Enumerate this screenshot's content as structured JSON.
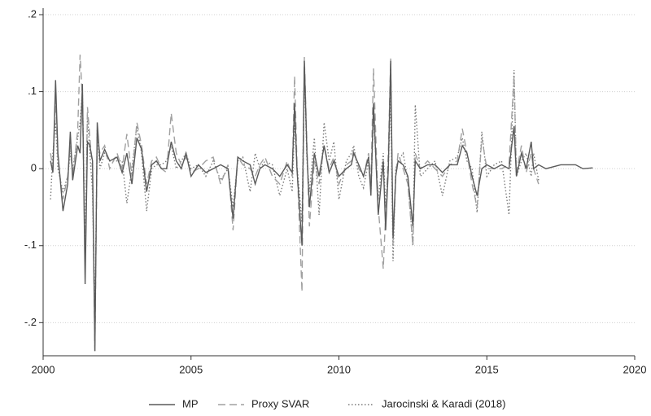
{
  "chart_data": {
    "type": "line",
    "x": [
      2000.25,
      2000.33,
      2000.42,
      2000.5,
      2000.67,
      2000.83,
      2000.92,
      2001.0,
      2001.17,
      2001.25,
      2001.33,
      2001.42,
      2001.5,
      2001.58,
      2001.67,
      2001.75,
      2001.83,
      2001.92,
      2002.08,
      2002.25,
      2002.5,
      2002.67,
      2002.83,
      2003.0,
      2003.17,
      2003.33,
      2003.5,
      2003.67,
      2003.83,
      2004.0,
      2004.17,
      2004.33,
      2004.5,
      2004.67,
      2004.83,
      2005.0,
      2005.25,
      2005.5,
      2005.75,
      2006.0,
      2006.25,
      2006.42,
      2006.58,
      2006.75,
      2007.0,
      2007.17,
      2007.33,
      2007.5,
      2007.75,
      2008.0,
      2008.25,
      2008.42,
      2008.5,
      2008.58,
      2008.75,
      2008.83,
      2008.92,
      2009.0,
      2009.17,
      2009.33,
      2009.5,
      2009.67,
      2009.83,
      2010.0,
      2010.25,
      2010.42,
      2010.5,
      2010.67,
      2010.83,
      2011.0,
      2011.08,
      2011.17,
      2011.33,
      2011.5,
      2011.58,
      2011.67,
      2011.75,
      2011.83,
      2011.92,
      2012.0,
      2012.17,
      2012.33,
      2012.5,
      2012.58,
      2012.75,
      2013.0,
      2013.25,
      2013.5,
      2013.75,
      2014.0,
      2014.17,
      2014.33,
      2014.5,
      2014.67,
      2014.83,
      2015.0,
      2015.25,
      2015.5,
      2015.75,
      2015.92,
      2016.0,
      2016.17,
      2016.33,
      2016.5,
      2016.58,
      2016.75,
      2017.0,
      2017.5,
      2018.0,
      2018.25,
      2018.58
    ],
    "series": [
      {
        "name": "MP",
        "color": "#5a5a5a",
        "dash": "solid",
        "values": [
          0.01,
          -0.005,
          0.115,
          0.02,
          -0.055,
          -0.02,
          0.048,
          -0.015,
          0.03,
          0.02,
          0.11,
          -0.15,
          0.035,
          0.03,
          0.01,
          -0.237,
          0.06,
          0.01,
          0.025,
          0.01,
          0.015,
          -0.005,
          0.02,
          -0.02,
          0.04,
          0.025,
          -0.03,
          0.005,
          0.01,
          0.0,
          0.0,
          0.035,
          0.01,
          0.0,
          0.02,
          -0.01,
          0.005,
          -0.005,
          0.0,
          0.005,
          0.0,
          -0.065,
          0.015,
          0.01,
          0.005,
          -0.02,
          0.0,
          0.005,
          0.0,
          -0.01,
          0.005,
          -0.005,
          0.085,
          0.0,
          -0.1,
          0.14,
          0.02,
          -0.05,
          0.02,
          -0.01,
          0.03,
          -0.005,
          0.01,
          -0.01,
          0.0,
          0.005,
          0.02,
          0.005,
          -0.01,
          0.015,
          -0.035,
          0.085,
          -0.06,
          0.01,
          -0.08,
          0.0,
          0.14,
          -0.09,
          -0.01,
          0.01,
          0.005,
          -0.01,
          -0.075,
          0.01,
          0.0,
          0.005,
          0.005,
          -0.005,
          0.005,
          0.005,
          0.03,
          0.02,
          -0.01,
          -0.035,
          0.0,
          0.005,
          0.0,
          0.005,
          0.0,
          0.055,
          -0.01,
          0.02,
          0.0,
          0.035,
          0.0,
          0.005,
          0.0,
          0.005,
          0.005,
          0.0,
          0.001
        ]
      },
      {
        "name": "Proxy SVAR",
        "color": "#a0a0a0",
        "dash": "dashed",
        "values": [
          0.02,
          0.0,
          0.09,
          0.01,
          -0.04,
          -0.01,
          0.03,
          -0.01,
          0.05,
          0.148,
          0.09,
          -0.12,
          0.08,
          0.04,
          0.0,
          -0.237,
          0.04,
          0.02,
          0.03,
          0.0,
          0.02,
          0.0,
          0.045,
          -0.01,
          0.06,
          0.03,
          -0.02,
          0.01,
          0.015,
          0.0,
          -0.005,
          0.072,
          0.02,
          0.005,
          0.015,
          -0.005,
          0.0,
          0.01,
          0.015,
          -0.02,
          0.005,
          -0.08,
          0.015,
          0.005,
          0.0,
          -0.01,
          0.005,
          0.015,
          -0.01,
          -0.02,
          0.01,
          -0.01,
          0.12,
          0.01,
          -0.16,
          0.145,
          0.03,
          -0.075,
          0.01,
          -0.02,
          0.03,
          0.0,
          0.015,
          -0.02,
          0.005,
          0.01,
          0.025,
          0.0,
          -0.01,
          0.02,
          -0.02,
          0.13,
          -0.05,
          -0.13,
          -0.06,
          0.02,
          0.143,
          -0.1,
          -0.01,
          0.02,
          0.0,
          -0.02,
          -0.1,
          0.02,
          0.0,
          0.01,
          0.0,
          -0.01,
          0.005,
          0.01,
          0.052,
          0.02,
          -0.02,
          -0.05,
          0.04,
          0.0,
          0.0,
          0.0,
          0.005,
          0.12,
          -0.005,
          0.03,
          -0.005,
          0.02,
          0.0,
          -0.02,
          null,
          null,
          null,
          null,
          null
        ]
      },
      {
        "name": "Jarocinski & Karadi (2018)",
        "color": "#7a7a7a",
        "dash": "dotted",
        "values": [
          -0.04,
          0.02,
          0.06,
          0.0,
          -0.03,
          -0.01,
          0.02,
          0.0,
          0.04,
          0.06,
          0.1,
          -0.1,
          0.07,
          0.02,
          -0.03,
          -0.2,
          0.05,
          0.0,
          0.02,
          0.01,
          0.01,
          0.01,
          -0.045,
          0.0,
          0.055,
          0.02,
          -0.055,
          0.0,
          0.005,
          0.005,
          0.01,
          0.03,
          0.0,
          0.01,
          0.02,
          0.0,
          0.005,
          -0.01,
          0.01,
          -0.015,
          0.0,
          -0.05,
          0.01,
          0.015,
          -0.03,
          0.02,
          0.0,
          0.01,
          0.005,
          -0.035,
          0.0,
          -0.03,
          0.06,
          0.005,
          -0.07,
          0.13,
          0.01,
          -0.03,
          0.04,
          -0.06,
          0.06,
          0.01,
          0.035,
          -0.04,
          0.01,
          0.02,
          0.03,
          -0.01,
          -0.025,
          0.01,
          -0.03,
          0.07,
          -0.04,
          0.02,
          -0.05,
          0.0,
          0.1,
          -0.12,
          0.0,
          0.01,
          0.02,
          -0.015,
          -0.1,
          0.083,
          -0.01,
          0.0,
          0.01,
          -0.035,
          0.01,
          0.015,
          0.04,
          0.01,
          0.0,
          -0.057,
          0.048,
          -0.01,
          0.005,
          0.01,
          -0.06,
          0.128,
          -0.01,
          0.01,
          0.02,
          -0.01,
          0.02,
          -0.015,
          null,
          null,
          null,
          null,
          null
        ]
      }
    ],
    "xlim": [
      2000,
      2020
    ],
    "xticks": [
      2000,
      2005,
      2010,
      2015,
      2020
    ],
    "ylim": [
      -0.243,
      0.2
    ],
    "yticks": [
      {
        "value": -0.2,
        "label": "-.2"
      },
      {
        "value": -0.1,
        "label": "-.1"
      },
      0,
      {
        "value": 0.1,
        "label": ".1"
      },
      {
        "value": 0.2,
        "label": ".2"
      }
    ],
    "grid": true,
    "legend": "bottom"
  }
}
